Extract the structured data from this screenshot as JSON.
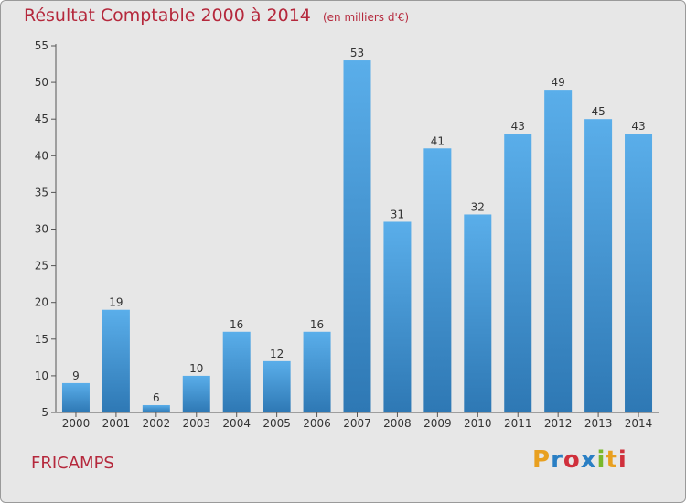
{
  "header": {
    "title": "Résultat Comptable 2000 à 2014",
    "subtitle": "(en milliers d'€)"
  },
  "footer": {
    "commune": "FRICAMPS",
    "logo_text": "Proxiti"
  },
  "colors": {
    "title": "#b5283c",
    "bar_top": "#5aaeea",
    "bar_bottom": "#2e78b4",
    "logo_letters": [
      "#e8a020",
      "#2a7fc4",
      "#d0303c",
      "#2a7fc4",
      "#7ab82c",
      "#e8a020",
      "#d0303c"
    ]
  },
  "chart_data": {
    "type": "bar",
    "title": "Résultat Comptable 2000 à 2014",
    "subtitle": "(en milliers d'€)",
    "categories": [
      "2000",
      "2001",
      "2002",
      "2003",
      "2004",
      "2005",
      "2006",
      "2007",
      "2008",
      "2009",
      "2010",
      "2011",
      "2012",
      "2013",
      "2014"
    ],
    "values": [
      9,
      19,
      6,
      10,
      16,
      12,
      16,
      53,
      31,
      41,
      32,
      43,
      49,
      45,
      43
    ],
    "ylim": [
      5,
      55
    ],
    "yticks": [
      5,
      10,
      15,
      20,
      25,
      30,
      35,
      40,
      45,
      50,
      55
    ],
    "xlabel": "",
    "ylabel": "",
    "grid": false,
    "data_labels": true
  }
}
